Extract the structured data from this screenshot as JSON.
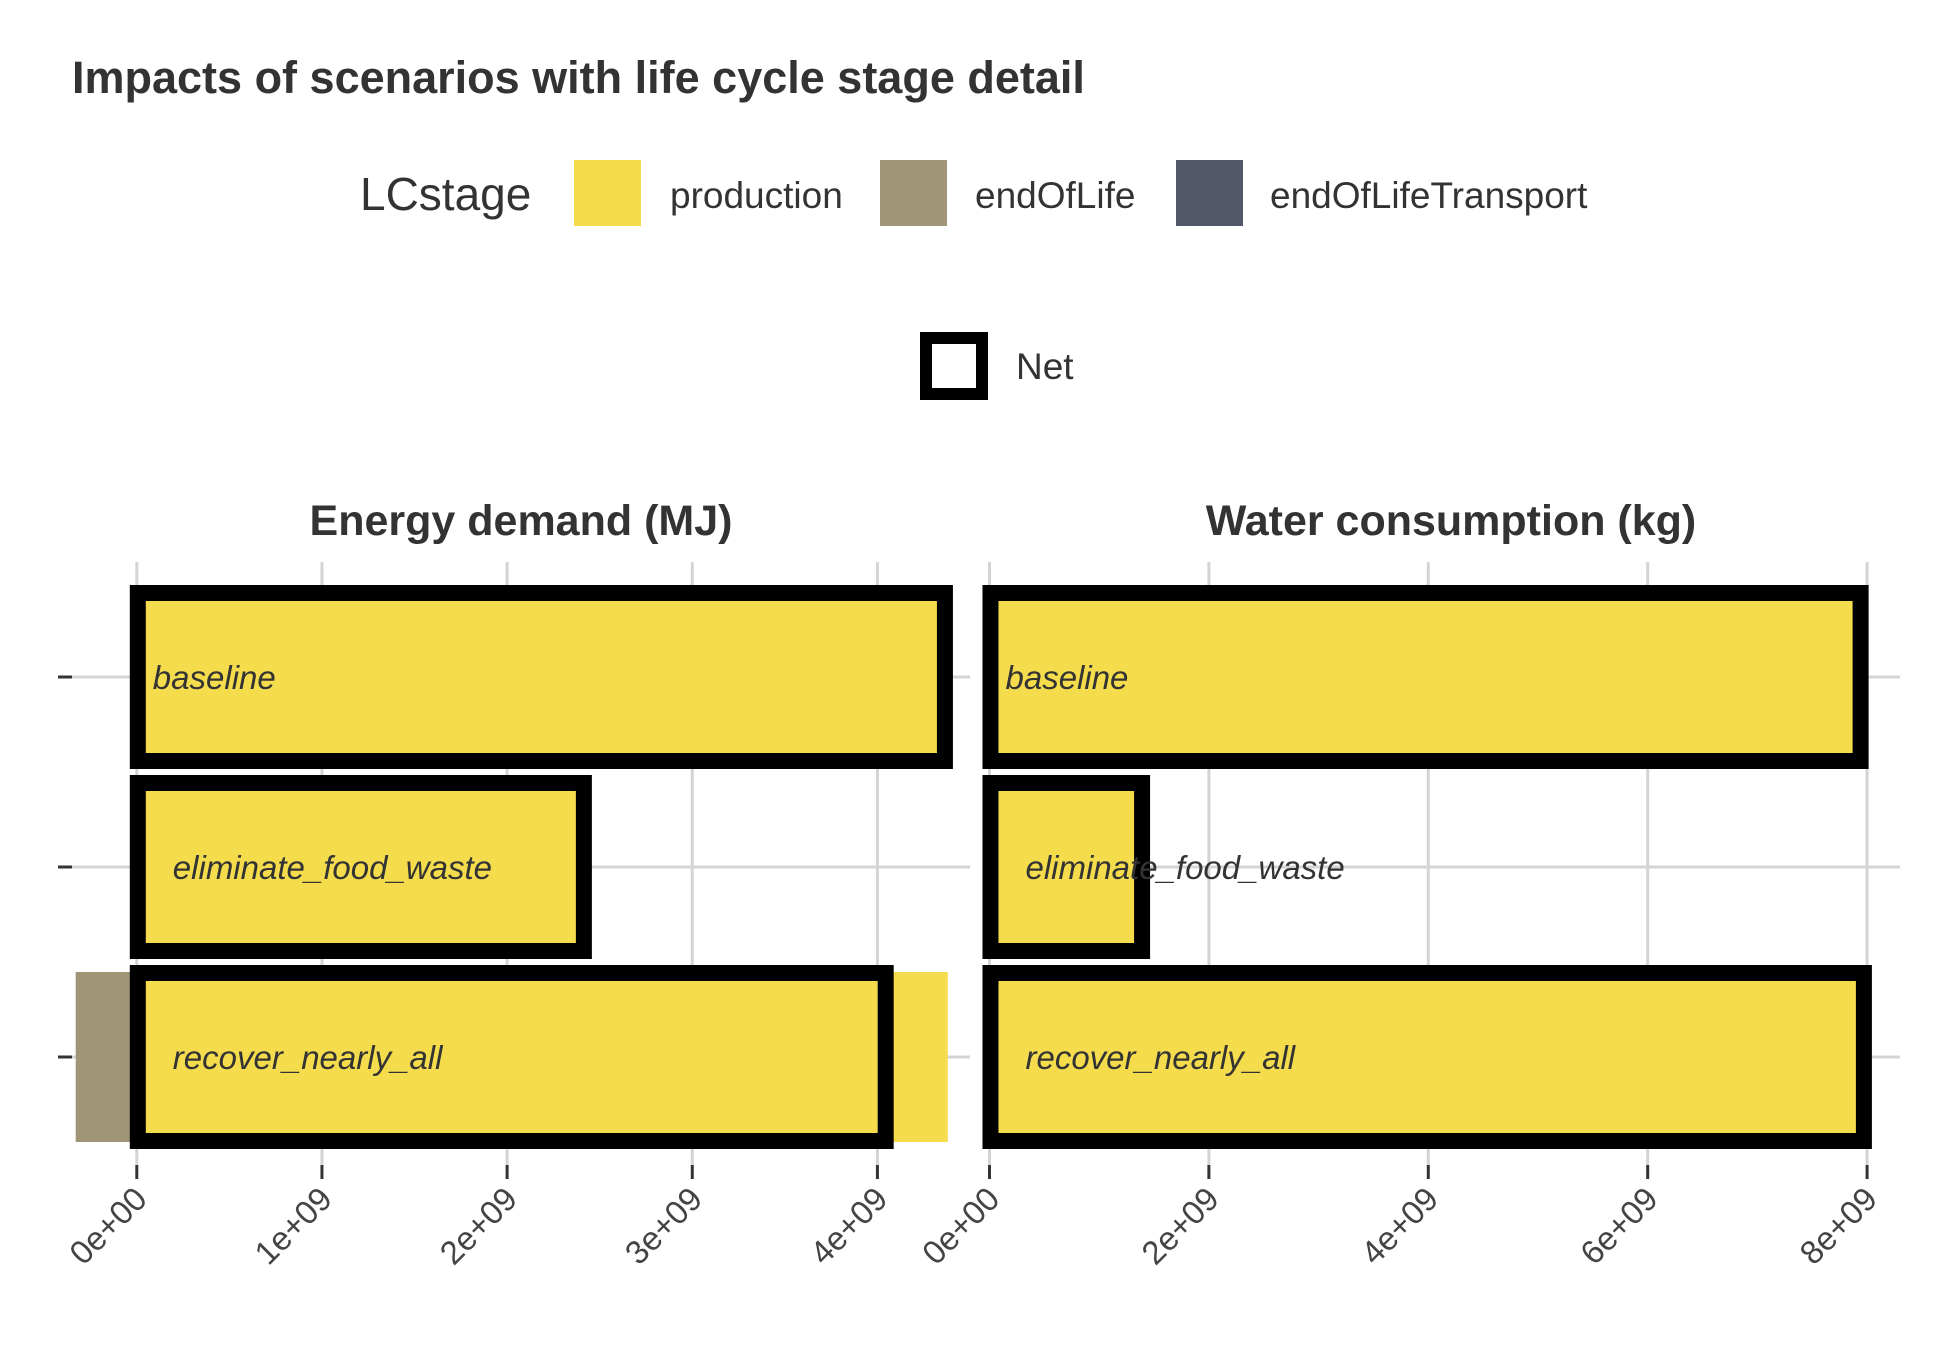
{
  "chart_data": {
    "type": "bar",
    "orientation": "horizontal",
    "stacked": true,
    "title": "Impacts of scenarios with life cycle stage detail",
    "legend": {
      "title": "LCstage",
      "placement": "top",
      "items": [
        {
          "name": "production",
          "color": "#F4DC4C"
        },
        {
          "name": "endOfLife",
          "color": "#A09677"
        },
        {
          "name": "endOfLifeTransport",
          "color": "#525769"
        }
      ],
      "net_label": "Net"
    },
    "categories": [
      "baseline",
      "eliminate_food_waste",
      "recover_nearly_all"
    ],
    "grid": true,
    "panels": [
      {
        "title": "Energy demand (MJ)",
        "xlim": [
          -350000000,
          4500000000
        ],
        "x_ticks": [
          0,
          1000000000,
          2000000000,
          3000000000,
          4000000000
        ],
        "x_tick_labels": [
          "0e+00",
          "1e+09",
          "2e+09",
          "3e+09",
          "4e+09"
        ],
        "series": [
          {
            "name": "production",
            "values": [
              4370000000,
              2420000000,
              4380000000
            ]
          },
          {
            "name": "endOfLife",
            "values": [
              0,
              0,
              -330000000
            ]
          },
          {
            "name": "endOfLifeTransport",
            "values": [
              0,
              0,
              0
            ]
          }
        ],
        "net": [
          4370000000,
          2420000000,
          4050000000
        ]
      },
      {
        "title": "Water consumption (kg)",
        "xlim": [
          -50000000,
          8300000000
        ],
        "x_ticks": [
          0,
          2000000000,
          4000000000,
          6000000000,
          8000000000
        ],
        "x_tick_labels": [
          "0e+00",
          "2e+09",
          "4e+09",
          "6e+09",
          "8e+09"
        ],
        "series": [
          {
            "name": "production",
            "values": [
              7950000000,
              1400000000,
              7980000000
            ]
          },
          {
            "name": "endOfLife",
            "values": [
              0,
              0,
              0
            ]
          },
          {
            "name": "endOfLifeTransport",
            "values": [
              0,
              0,
              0
            ]
          }
        ],
        "net": [
          7950000000,
          1400000000,
          7980000000
        ]
      }
    ]
  }
}
